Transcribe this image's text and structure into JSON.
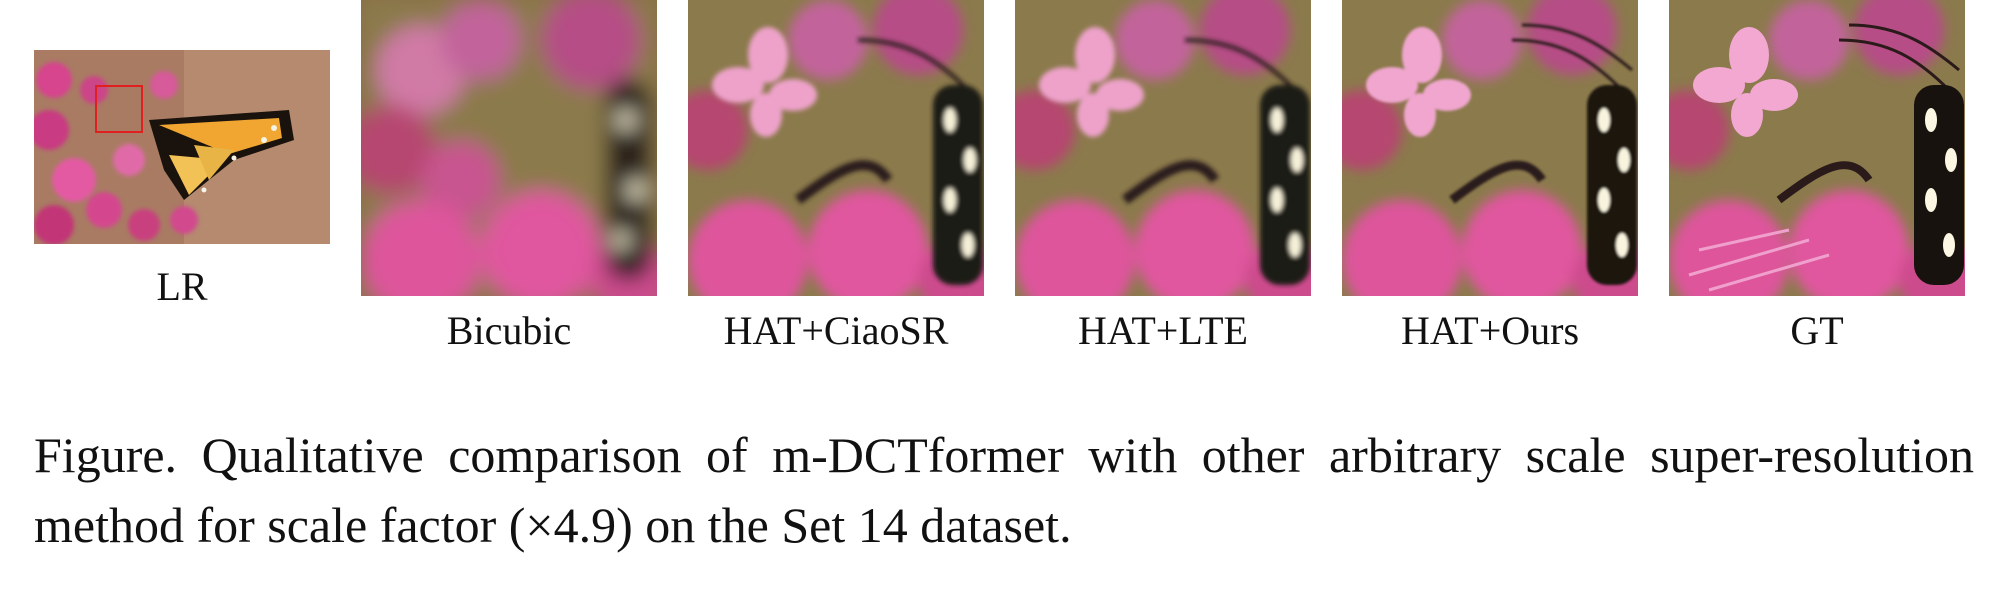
{
  "panels": [
    {
      "label": "LR"
    },
    {
      "label": "Bicubic"
    },
    {
      "label": "HAT+CiaoSR"
    },
    {
      "label": "HAT+LTE"
    },
    {
      "label": "HAT+Ours"
    },
    {
      "label": "GT"
    }
  ],
  "caption": "Figure. Qualitative comparison of m-DCTformer with other arbitrary scale super-resolution method for scale factor (×4.9) on the Set 14 dataset."
}
